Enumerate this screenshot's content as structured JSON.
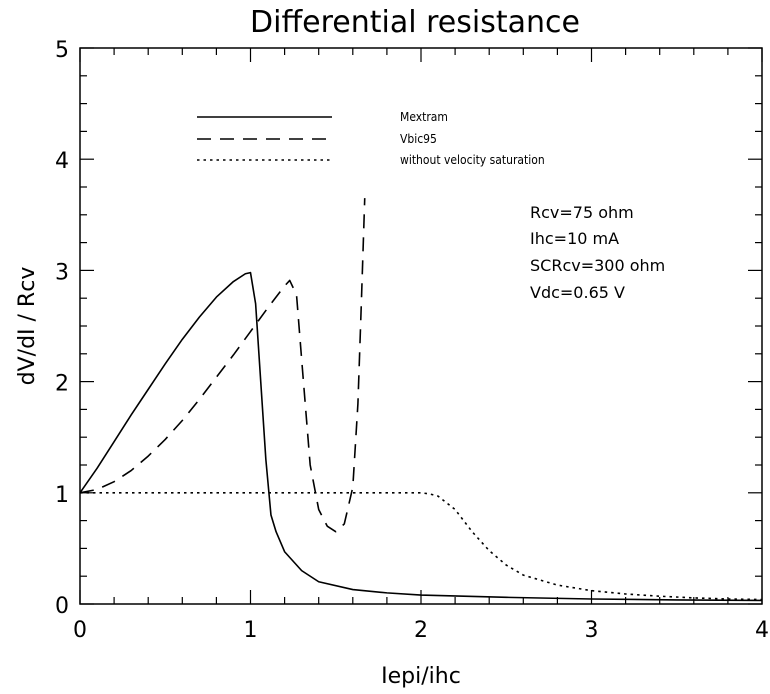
{
  "chart_data": {
    "type": "line",
    "title": "Differential resistance",
    "xlabel": "Iepi/ihc",
    "ylabel": "dV/dI / Rcv",
    "xlim": [
      0,
      4
    ],
    "ylim": [
      0,
      5
    ],
    "x_ticks": [
      0,
      1,
      2,
      3,
      4
    ],
    "y_ticks": [
      0,
      1,
      2,
      3,
      4,
      5
    ],
    "grid": false,
    "legend_position": "top-left",
    "series": [
      {
        "name": "Mextram",
        "dash": "solid",
        "x": [
          0,
          0.1,
          0.2,
          0.3,
          0.4,
          0.5,
          0.6,
          0.7,
          0.8,
          0.9,
          0.97,
          1.0,
          1.03,
          1.06,
          1.09,
          1.12,
          1.15,
          1.2,
          1.3,
          1.4,
          1.6,
          1.8,
          2.0,
          2.5,
          3.0,
          3.5,
          4.0
        ],
        "y": [
          1.0,
          1.22,
          1.46,
          1.7,
          1.93,
          2.16,
          2.38,
          2.58,
          2.76,
          2.9,
          2.97,
          2.98,
          2.7,
          2.0,
          1.3,
          0.8,
          0.65,
          0.47,
          0.3,
          0.2,
          0.13,
          0.1,
          0.08,
          0.06,
          0.045,
          0.037,
          0.032
        ]
      },
      {
        "name": "Vbic95",
        "dash": "dashed",
        "x": [
          0,
          0.1,
          0.2,
          0.3,
          0.4,
          0.5,
          0.6,
          0.7,
          0.8,
          0.9,
          1.0,
          1.1,
          1.2,
          1.23,
          1.27,
          1.3,
          1.35,
          1.4,
          1.45,
          1.5,
          1.55,
          1.6,
          1.63,
          1.65,
          1.67
        ],
        "y": [
          1.0,
          1.03,
          1.1,
          1.2,
          1.33,
          1.48,
          1.65,
          1.84,
          2.04,
          2.24,
          2.45,
          2.66,
          2.86,
          2.91,
          2.78,
          2.2,
          1.25,
          0.85,
          0.7,
          0.65,
          0.72,
          1.05,
          1.8,
          2.7,
          3.65
        ]
      },
      {
        "name": "without velocity saturation",
        "dash": "dotted",
        "x": [
          0,
          0.5,
          1.0,
          1.5,
          2.0,
          2.05,
          2.1,
          2.2,
          2.3,
          2.4,
          2.5,
          2.6,
          2.8,
          3.0,
          3.2,
          3.4,
          3.6,
          3.8,
          4.0
        ],
        "y": [
          1.0,
          1.0,
          1.0,
          1.0,
          1.0,
          0.99,
          0.97,
          0.85,
          0.65,
          0.48,
          0.35,
          0.26,
          0.17,
          0.12,
          0.09,
          0.07,
          0.055,
          0.045,
          0.04
        ]
      }
    ],
    "annotations": [
      "Rcv=75 ohm",
      "Ihc=10 mA",
      "SCRcv=300 ohm",
      "Vdc=0.65 V"
    ]
  }
}
